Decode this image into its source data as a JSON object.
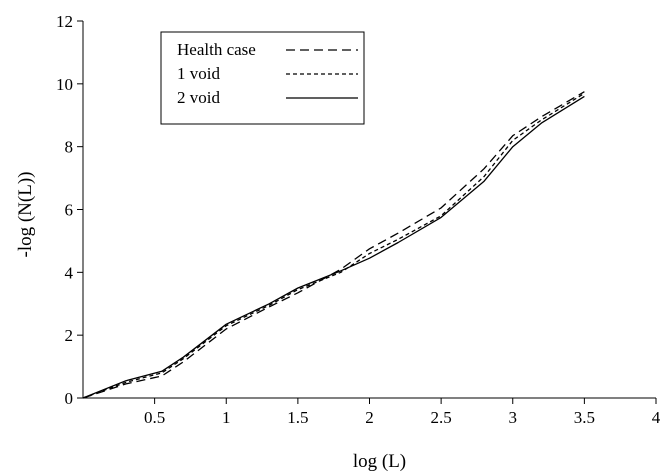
{
  "chart_data": {
    "type": "line",
    "xlabel": "log (L)",
    "ylabel": "-log (N(L))",
    "xlim": [
      0,
      4
    ],
    "ylim": [
      0,
      12
    ],
    "xticks": [
      "0.5",
      "1",
      "1.5",
      "2",
      "2.5",
      "3",
      "3.5",
      "4"
    ],
    "yticks": [
      "0",
      "2",
      "4",
      "6",
      "8",
      "10",
      "12"
    ],
    "grid": false,
    "legend_position": "top-left",
    "series": [
      {
        "name": "Health case",
        "style": "dashed",
        "x": [
          0,
          0.3,
          0.55,
          0.7,
          1.0,
          1.3,
          1.5,
          1.8,
          2.0,
          2.2,
          2.5,
          2.8,
          3.0,
          3.2,
          3.5
        ],
        "y": [
          0,
          0.45,
          0.7,
          1.15,
          2.2,
          2.9,
          3.35,
          4.1,
          4.75,
          5.25,
          6.05,
          7.3,
          8.35,
          8.95,
          9.75
        ]
      },
      {
        "name": "1 void",
        "style": "dotted",
        "x": [
          0,
          0.3,
          0.55,
          0.7,
          1.0,
          1.3,
          1.5,
          1.8,
          2.0,
          2.2,
          2.5,
          2.8,
          3.0,
          3.2,
          3.5
        ],
        "y": [
          0,
          0.5,
          0.8,
          1.25,
          2.3,
          2.95,
          3.45,
          4.0,
          4.6,
          5.05,
          5.8,
          7.05,
          8.2,
          8.85,
          9.7
        ]
      },
      {
        "name": "2 void",
        "style": "solid",
        "x": [
          0,
          0.3,
          0.55,
          0.7,
          1.0,
          1.3,
          1.5,
          1.8,
          2.0,
          2.2,
          2.5,
          2.8,
          3.0,
          3.2,
          3.5
        ],
        "y": [
          0,
          0.55,
          0.85,
          1.3,
          2.35,
          3.0,
          3.5,
          4.05,
          4.45,
          4.95,
          5.75,
          6.9,
          8.0,
          8.75,
          9.6
        ]
      }
    ]
  }
}
